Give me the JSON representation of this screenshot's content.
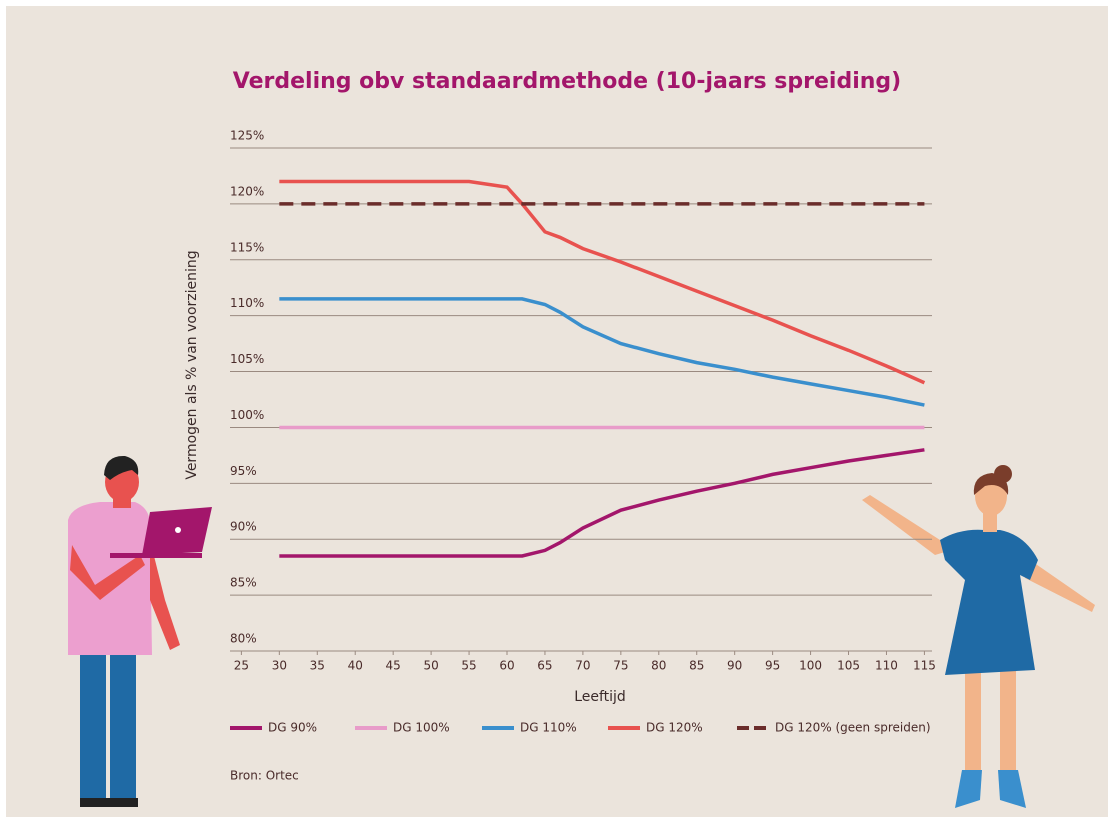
{
  "chart_data": {
    "type": "line",
    "title": "Verdeling obv standaardmethode (10-jaars spreiding)",
    "x_label": "Leeftijd",
    "y_label": "Vermogen als % van voorziening",
    "source": "Bron: Ortec",
    "x": [
      30,
      35,
      40,
      45,
      50,
      55,
      60,
      62,
      65,
      67,
      70,
      75,
      80,
      85,
      90,
      95,
      100,
      105,
      110,
      115
    ],
    "series": [
      {
        "name": "DG 90%",
        "color": "#a3166b",
        "style": "solid",
        "values": [
          88.5,
          88.5,
          88.5,
          88.5,
          88.5,
          88.5,
          88.5,
          88.5,
          89,
          89.7,
          91,
          92.6,
          93.5,
          94.3,
          95,
          95.8,
          96.4,
          97,
          97.5,
          98
        ]
      },
      {
        "name": "DG 100%",
        "color": "#e89bc9",
        "style": "solid",
        "values": [
          100,
          100,
          100,
          100,
          100,
          100,
          100,
          100,
          100,
          100,
          100,
          100,
          100,
          100,
          100,
          100,
          100,
          100,
          100,
          100
        ]
      },
      {
        "name": "DG 110%",
        "color": "#3a8fcd",
        "style": "solid",
        "values": [
          111.5,
          111.5,
          111.5,
          111.5,
          111.5,
          111.5,
          111.5,
          111.5,
          111,
          110.3,
          109,
          107.5,
          106.6,
          105.8,
          105.2,
          104.5,
          103.9,
          103.3,
          102.7,
          102
        ]
      },
      {
        "name": "DG 120%",
        "color": "#e8524f",
        "style": "solid",
        "values": [
          122,
          122,
          122,
          122,
          122,
          122,
          121.5,
          120,
          117.5,
          117,
          116,
          114.8,
          113.5,
          112.2,
          110.9,
          109.6,
          108.2,
          106.9,
          105.5,
          104
        ]
      },
      {
        "name": "DG 120% (geen spreiden)",
        "color": "#6b2d2b",
        "style": "dashed",
        "values": [
          120,
          120,
          120,
          120,
          120,
          120,
          120,
          120,
          120,
          120,
          120,
          120,
          120,
          120,
          120,
          120,
          120,
          120,
          120,
          120
        ]
      }
    ],
    "xlim": [
      23.5,
      116
    ],
    "xticks": [
      25,
      30,
      35,
      40,
      45,
      50,
      55,
      60,
      65,
      70,
      75,
      80,
      85,
      90,
      95,
      100,
      105,
      110,
      115
    ],
    "ylim": [
      80,
      125
    ],
    "yticks": [
      {
        "value": 80,
        "label": "80%"
      },
      {
        "value": 85,
        "label": "85%"
      },
      {
        "value": 90,
        "label": "90%"
      },
      {
        "value": 95,
        "label": "95%"
      },
      {
        "value": 100,
        "label": "100%"
      },
      {
        "value": 105,
        "label": "105%"
      },
      {
        "value": 110,
        "label": "110%"
      },
      {
        "value": 115,
        "label": "115%"
      },
      {
        "value": 120,
        "label": "120%"
      },
      {
        "value": 125,
        "label": "125%"
      }
    ],
    "grid": true
  }
}
